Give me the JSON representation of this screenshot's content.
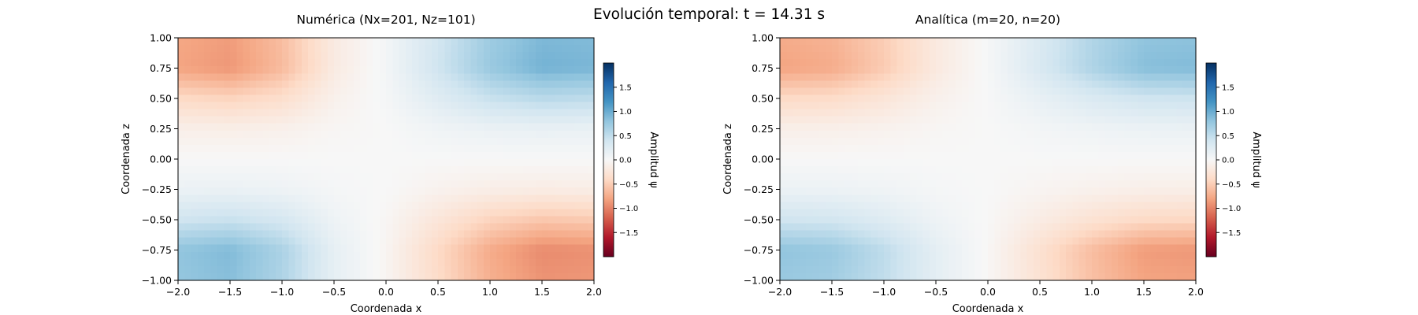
{
  "figure": {
    "suptitle": "Evolución temporal: t = 14.31 s"
  },
  "colorbar": {
    "label": "Amplitud ψ",
    "ticks": [
      -1.5,
      -1.0,
      -0.5,
      0.0,
      0.5,
      1.0,
      1.5
    ],
    "tick_labels": [
      "−1.5",
      "−1.0",
      "−0.5",
      "0.0",
      "0.5",
      "1.0",
      "1.5"
    ],
    "range": [
      -2.0,
      2.0
    ],
    "colormap": "RdBu",
    "colors": [
      "#67001f",
      "#b2182b",
      "#d6604d",
      "#f4a582",
      "#fddbc7",
      "#f7f7f7",
      "#d1e5f0",
      "#92c5de",
      "#4393c3",
      "#2166ac",
      "#053061"
    ]
  },
  "chart_data": [
    {
      "type": "heatmap",
      "title": "Numérica (Nx=201, Nz=101)",
      "xlabel": "Coordenada x",
      "ylabel": "Coordenada z",
      "xlim": [
        -2.0,
        2.0
      ],
      "ylim": [
        -1.0,
        1.0
      ],
      "xticks": [
        "−2.0",
        "−1.5",
        "−1.0",
        "−0.5",
        "0.0",
        "0.5",
        "1.0",
        "1.5",
        "2.0"
      ],
      "yticks": [
        "−1.00",
        "−0.75",
        "−0.50",
        "−0.25",
        "0.00",
        "0.25",
        "0.50",
        "0.75",
        "1.00"
      ],
      "x": [
        -2.0,
        -1.5,
        -1.0,
        -0.5,
        0.0,
        0.5,
        1.0,
        1.5,
        2.0
      ],
      "z": [
        1.0,
        0.75,
        0.5,
        0.25,
        0.0,
        -0.25,
        -0.5,
        -0.75,
        -1.0
      ],
      "values": [
        [
          -0.78,
          -0.85,
          -0.62,
          -0.18,
          0.05,
          0.38,
          0.72,
          0.9,
          0.88
        ],
        [
          -0.8,
          -0.88,
          -0.64,
          -0.18,
          0.05,
          0.4,
          0.75,
          0.95,
          0.92
        ],
        [
          -0.4,
          -0.45,
          -0.35,
          -0.1,
          0.03,
          0.25,
          0.45,
          0.55,
          0.52
        ],
        [
          -0.12,
          -0.13,
          -0.1,
          -0.03,
          0.0,
          0.08,
          0.13,
          0.15,
          0.14
        ],
        [
          0.0,
          0.0,
          0.0,
          0.0,
          0.0,
          0.0,
          0.0,
          0.0,
          0.0
        ],
        [
          0.12,
          0.13,
          0.1,
          0.03,
          0.0,
          -0.08,
          -0.13,
          -0.15,
          -0.14
        ],
        [
          0.4,
          0.45,
          0.35,
          0.1,
          -0.03,
          -0.25,
          -0.45,
          -0.55,
          -0.52
        ],
        [
          0.8,
          0.88,
          0.64,
          0.18,
          -0.05,
          -0.4,
          -0.75,
          -0.95,
          -0.92
        ],
        [
          0.78,
          0.85,
          0.62,
          0.18,
          -0.05,
          -0.38,
          -0.72,
          -0.9,
          -0.88
        ]
      ]
    },
    {
      "type": "heatmap",
      "title": "Analítica (m=20, n=20)",
      "xlabel": "Coordenada x",
      "ylabel": "Coordenada z",
      "xlim": [
        -2.0,
        2.0
      ],
      "ylim": [
        -1.0,
        1.0
      ],
      "xticks": [
        "−2.0",
        "−1.5",
        "−1.0",
        "−0.5",
        "0.0",
        "0.5",
        "1.0",
        "1.5",
        "2.0"
      ],
      "yticks": [
        "−1.00",
        "−0.75",
        "−0.50",
        "−0.25",
        "0.00",
        "0.25",
        "0.50",
        "0.75",
        "1.00"
      ],
      "x": [
        -2.0,
        -1.5,
        -1.0,
        -0.5,
        0.0,
        0.5,
        1.0,
        1.5,
        2.0
      ],
      "z": [
        1.0,
        0.75,
        0.5,
        0.25,
        0.0,
        -0.25,
        -0.5,
        -0.75,
        -1.0
      ],
      "values": [
        [
          -0.75,
          -0.7,
          -0.5,
          -0.2,
          0.02,
          0.3,
          0.6,
          0.8,
          0.82
        ],
        [
          -0.8,
          -0.75,
          -0.52,
          -0.2,
          0.02,
          0.32,
          0.62,
          0.85,
          0.88
        ],
        [
          -0.4,
          -0.38,
          -0.26,
          -0.1,
          0.01,
          0.16,
          0.3,
          0.4,
          0.42
        ],
        [
          -0.12,
          -0.11,
          -0.08,
          -0.03,
          0.0,
          0.05,
          0.09,
          0.12,
          0.13
        ],
        [
          0.0,
          0.0,
          0.0,
          0.0,
          0.0,
          0.0,
          0.0,
          0.0,
          0.0
        ],
        [
          0.12,
          0.11,
          0.08,
          0.03,
          0.0,
          -0.05,
          -0.09,
          -0.12,
          -0.13
        ],
        [
          0.4,
          0.38,
          0.26,
          0.1,
          -0.01,
          -0.16,
          -0.3,
          -0.4,
          -0.42
        ],
        [
          0.8,
          0.75,
          0.52,
          0.2,
          -0.02,
          -0.32,
          -0.62,
          -0.85,
          -0.88
        ],
        [
          0.75,
          0.7,
          0.5,
          0.2,
          -0.02,
          -0.3,
          -0.6,
          -0.8,
          -0.82
        ]
      ]
    }
  ]
}
